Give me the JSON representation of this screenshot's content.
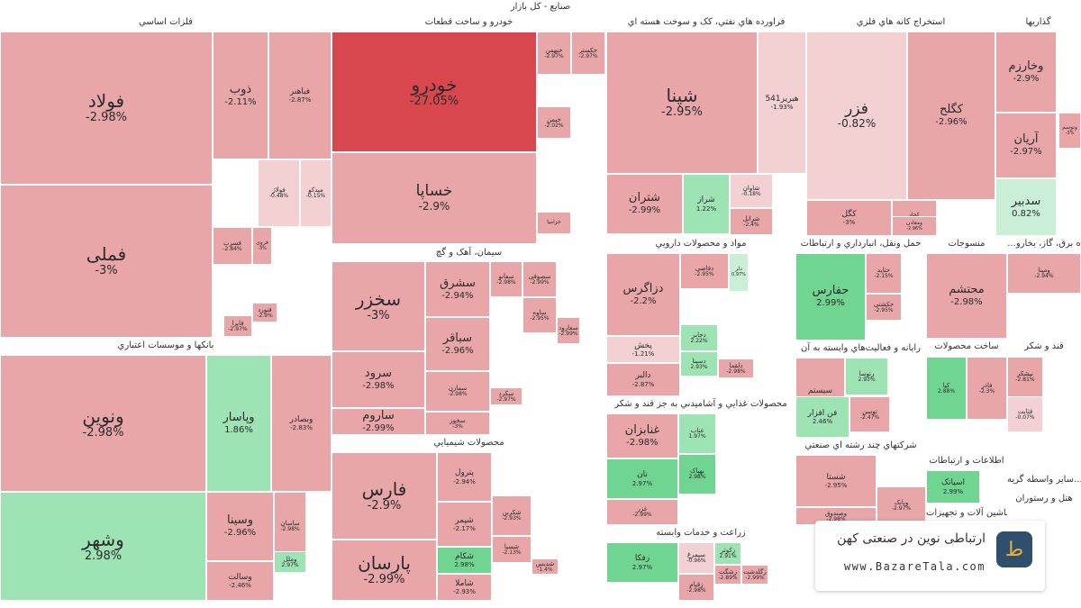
{
  "title": "صنايع - کل بازار",
  "colors": {
    "strong_negative": "#d8474e",
    "negative": "#e8a6a9",
    "slight_negative": "#f3d0d2",
    "slight_positive": "#c9efd6",
    "positive": "#9de3b4",
    "strong_positive": "#6fd590"
  },
  "sectors": [
    {
      "name": "فلزات اساسي"
    },
    {
      "name": "خودرو و ساخت قطعات"
    },
    {
      "name": "فراورده هاي نفتي، کک و سوخت هسته اي"
    },
    {
      "name": "استخراج کانه هاي فلزي"
    },
    {
      "name": "گذاريها"
    },
    {
      "name": "بانکها و موسسات اعتباري"
    },
    {
      "name": "سيمان، آهک و گچ"
    },
    {
      "name": "محصولات شيميايي"
    },
    {
      "name": "مواد و محصولات دارويي"
    },
    {
      "name": "حمل ونقل، انبارداري و ارتباطات"
    },
    {
      "name": "منسوجات"
    },
    {
      "name": "...ه برق، گاز، بخارو"
    },
    {
      "name": "رايانه و فعاليت‌هاي وابسته به آن"
    },
    {
      "name": "ساخت محصولات"
    },
    {
      "name": "قند و شکر"
    },
    {
      "name": "محصولات غذايي و آشاميدني به جز قند و شکر"
    },
    {
      "name": "شرکتهاي چند رشته اي صنعتي"
    },
    {
      "name": "اطلاعات و ارتباطات"
    },
    {
      "name": "سایر واسطه گريه..."
    },
    {
      "name": "زراعت و خدمات وابسته"
    },
    {
      "name": "هتل و رستوران"
    },
    {
      "name": "ماشين آلات و تجهيزات"
    }
  ],
  "tiles": [
    {
      "name": "فولاد",
      "pct": "-2.98%",
      "tone": "negative"
    },
    {
      "name": "فملی",
      "pct": "-3%",
      "tone": "negative"
    },
    {
      "name": "ذوب",
      "pct": "-2.11%",
      "tone": "negative"
    },
    {
      "name": "فباهنر",
      "pct": "-2.87%",
      "tone": "negative"
    },
    {
      "name": "فولاژ",
      "pct": "-0.48%",
      "tone": "slight_negative"
    },
    {
      "name": "میدکو",
      "pct": "-0.15%",
      "tone": "slight_negative"
    },
    {
      "name": "فسرب",
      "pct": "-2.84%",
      "tone": "negative"
    },
    {
      "name": "فروی",
      "pct": "-3%",
      "tone": "negative"
    },
    {
      "name": "فنورد",
      "pct": "-2.9%",
      "tone": "negative"
    },
    {
      "name": "فایرا",
      "pct": "-2.97%",
      "tone": "negative"
    },
    {
      "name": "خودرو",
      "pct": "-27.05%",
      "tone": "strong_negative"
    },
    {
      "name": "خساپا",
      "pct": "-2.9%",
      "tone": "negative"
    },
    {
      "name": "خبهمن",
      "pct": "-2.97%",
      "tone": "negative"
    },
    {
      "name": "خکستر",
      "pct": "-2.97%",
      "tone": "negative"
    },
    {
      "name": "خیمن",
      "pct": "-2.02%",
      "tone": "negative"
    },
    {
      "name": "خزامیا",
      "pct": "",
      "tone": "negative"
    },
    {
      "name": "شپنا",
      "pct": "-2.95%",
      "tone": "negative"
    },
    {
      "name": "هبریز541",
      "pct": "-1.93%",
      "tone": "slight_negative"
    },
    {
      "name": "شتران",
      "pct": "-2.99%",
      "tone": "negative"
    },
    {
      "name": "شراز",
      "pct": "1.22%",
      "tone": "positive"
    },
    {
      "name": "شاوان",
      "pct": "-0.18%",
      "tone": "slight_negative"
    },
    {
      "name": "شرانل",
      "pct": "-2.4%",
      "tone": "negative"
    },
    {
      "name": "فزر",
      "pct": "-0.82%",
      "tone": "slight_negative"
    },
    {
      "name": "کگلح",
      "pct": "-2.96%",
      "tone": "negative"
    },
    {
      "name": "کگل",
      "pct": "-3%",
      "tone": "negative"
    },
    {
      "name": "کچاد",
      "pct": "-2.99%",
      "tone": "negative"
    },
    {
      "name": "ومعادن",
      "pct": "-2.96%",
      "tone": "negative"
    },
    {
      "name": "وخارزم",
      "pct": "-2.9%",
      "tone": "negative"
    },
    {
      "name": "آریان",
      "pct": "-2.97%",
      "tone": "negative"
    },
    {
      "name": "سدبیر",
      "pct": "0.82%",
      "tone": "slight_positive"
    },
    {
      "name": "وتوسم",
      "pct": "-3%",
      "tone": "negative"
    },
    {
      "name": "ونوین",
      "pct": "-2.98%",
      "tone": "negative"
    },
    {
      "name": "وشهر",
      "pct": "2.98%",
      "tone": "positive"
    },
    {
      "name": "وپاسار",
      "pct": "1.86%",
      "tone": "positive"
    },
    {
      "name": "وبصادر",
      "pct": "-2.83%",
      "tone": "negative"
    },
    {
      "name": "وسینا",
      "pct": "-2.96%",
      "tone": "negative"
    },
    {
      "name": "ساسان",
      "pct": "-2.98%",
      "tone": "negative"
    },
    {
      "name": "وسالت",
      "pct": "-2.46%",
      "tone": "negative"
    },
    {
      "name": "وملل",
      "pct": "2.97%",
      "tone": "positive"
    },
    {
      "name": "سخزر",
      "pct": "-3%",
      "tone": "negative"
    },
    {
      "name": "سشرق",
      "pct": "-2.94%",
      "tone": "negative"
    },
    {
      "name": "سرود",
      "pct": "-2.98%",
      "tone": "negative"
    },
    {
      "name": "سباقر",
      "pct": "-2.96%",
      "tone": "negative"
    },
    {
      "name": "ساروم",
      "pct": "-2.99%",
      "tone": "negative"
    },
    {
      "name": "سمازن",
      "pct": "-2.98%",
      "tone": "negative"
    },
    {
      "name": "سخوز",
      "pct": "-3%",
      "tone": "negative"
    },
    {
      "name": "سصوفی",
      "pct": "-2.99%",
      "tone": "negative"
    },
    {
      "name": "سفانو",
      "pct": "-2.98%",
      "tone": "negative"
    },
    {
      "name": "ساوه",
      "pct": "-2.95%",
      "tone": "negative"
    },
    {
      "name": "سفارود",
      "pct": "-2.99%",
      "tone": "negative"
    },
    {
      "name": "سکرد",
      "pct": "-2.97%",
      "tone": "negative"
    },
    {
      "name": "فارس",
      "pct": "-2.9%",
      "tone": "negative"
    },
    {
      "name": "پارسان",
      "pct": "-2.99%",
      "tone": "negative"
    },
    {
      "name": "پترول",
      "pct": "-2.94%",
      "tone": "negative"
    },
    {
      "name": "شپمر",
      "pct": "-2.17%",
      "tone": "negative"
    },
    {
      "name": "شکام",
      "pct": "2.98%",
      "tone": "strong_positive"
    },
    {
      "name": "شاملا",
      "pct": "-2.93%",
      "tone": "negative"
    },
    {
      "name": "شکربن",
      "pct": "-2.93%",
      "tone": "negative"
    },
    {
      "name": "شسپا",
      "pct": "-2.13%",
      "tone": "negative"
    },
    {
      "name": "شدیس",
      "pct": "-1.4%",
      "tone": "negative"
    },
    {
      "name": "دزاگرس",
      "pct": "-2.2%",
      "tone": "negative"
    },
    {
      "name": "پخش",
      "pct": "-1.21%",
      "tone": "slight_negative"
    },
    {
      "name": "دالبر",
      "pct": "-2.87%",
      "tone": "negative"
    },
    {
      "name": "دفاضی",
      "pct": "-2.95%",
      "tone": "negative"
    },
    {
      "name": "دلر",
      "pct": "0.97%",
      "tone": "slight_positive"
    },
    {
      "name": "دجابر",
      "pct": "2.22%",
      "tone": "positive"
    },
    {
      "name": "دسینا",
      "pct": "2.93%",
      "tone": "positive"
    },
    {
      "name": "دلقما",
      "pct": "-2.98%",
      "tone": "negative"
    },
    {
      "name": "حفارس",
      "pct": "2.99%",
      "tone": "strong_positive"
    },
    {
      "name": "حتاید",
      "pct": "-2.15%",
      "tone": "negative"
    },
    {
      "name": "حکشتی",
      "pct": "-2.95%",
      "tone": "negative"
    },
    {
      "name": "محتشم",
      "pct": "-2.98%",
      "tone": "negative"
    },
    {
      "name": "ومپنا",
      "pct": "-2.94%",
      "tone": "negative"
    },
    {
      "name": "سیستم",
      "pct": "-3%",
      "tone": "negative"
    },
    {
      "name": "رتوسا",
      "pct": "2.93%",
      "tone": "positive"
    },
    {
      "name": "فن افزار",
      "pct": "2.46%",
      "tone": "positive"
    },
    {
      "name": "توسن",
      "pct": "-2.47%",
      "tone": "negative"
    },
    {
      "name": "غنابزان",
      "pct": "-2.98%",
      "tone": "negative"
    },
    {
      "name": "غناب",
      "pct": "1.97%",
      "tone": "positive"
    },
    {
      "name": "نان",
      "pct": "2.97%",
      "tone": "strong_positive"
    },
    {
      "name": "بهپاک",
      "pct": "2.98%",
      "tone": "strong_positive"
    },
    {
      "name": "غزر",
      "pct": "-2.99%",
      "tone": "negative"
    },
    {
      "name": "شستا",
      "pct": "-2.95%",
      "tone": "negative"
    },
    {
      "name": "وصندوق",
      "pct": "-2.98%",
      "tone": "negative"
    },
    {
      "name": "وبانک",
      "pct": "-2.97%",
      "tone": "negative"
    },
    {
      "name": "کیا",
      "pct": "2.88%",
      "tone": "strong_positive"
    },
    {
      "name": "فاذر",
      "pct": "-2.3%",
      "tone": "negative"
    },
    {
      "name": "اسیاتک",
      "pct": "2.99%",
      "tone": "strong_positive"
    },
    {
      "name": "زفکا",
      "pct": "2.97%",
      "tone": "strong_positive"
    },
    {
      "name": "سیمرغ",
      "pct": "-0.96%",
      "tone": "slight_negative"
    },
    {
      "name": "زکوثر",
      "pct": "2.91%",
      "tone": "positive"
    },
    {
      "name": "زقیام",
      "pct": "-2.98%",
      "tone": "negative"
    },
    {
      "name": "زشگت",
      "pct": "-2.89%",
      "tone": "negative"
    },
    {
      "name": "زگلدشت",
      "pct": "-2.99%",
      "tone": "negative"
    },
    {
      "name": "نیشکر",
      "pct": "-2.81%",
      "tone": "negative"
    },
    {
      "name": "قثابت",
      "pct": "-0.07%",
      "tone": "slight_negative"
    }
  ],
  "watermark": {
    "line1": "ارتباطی نوین در صنعتی کهن",
    "line2": "www.BazareTala.com",
    "logo_glyph": "ط"
  }
}
